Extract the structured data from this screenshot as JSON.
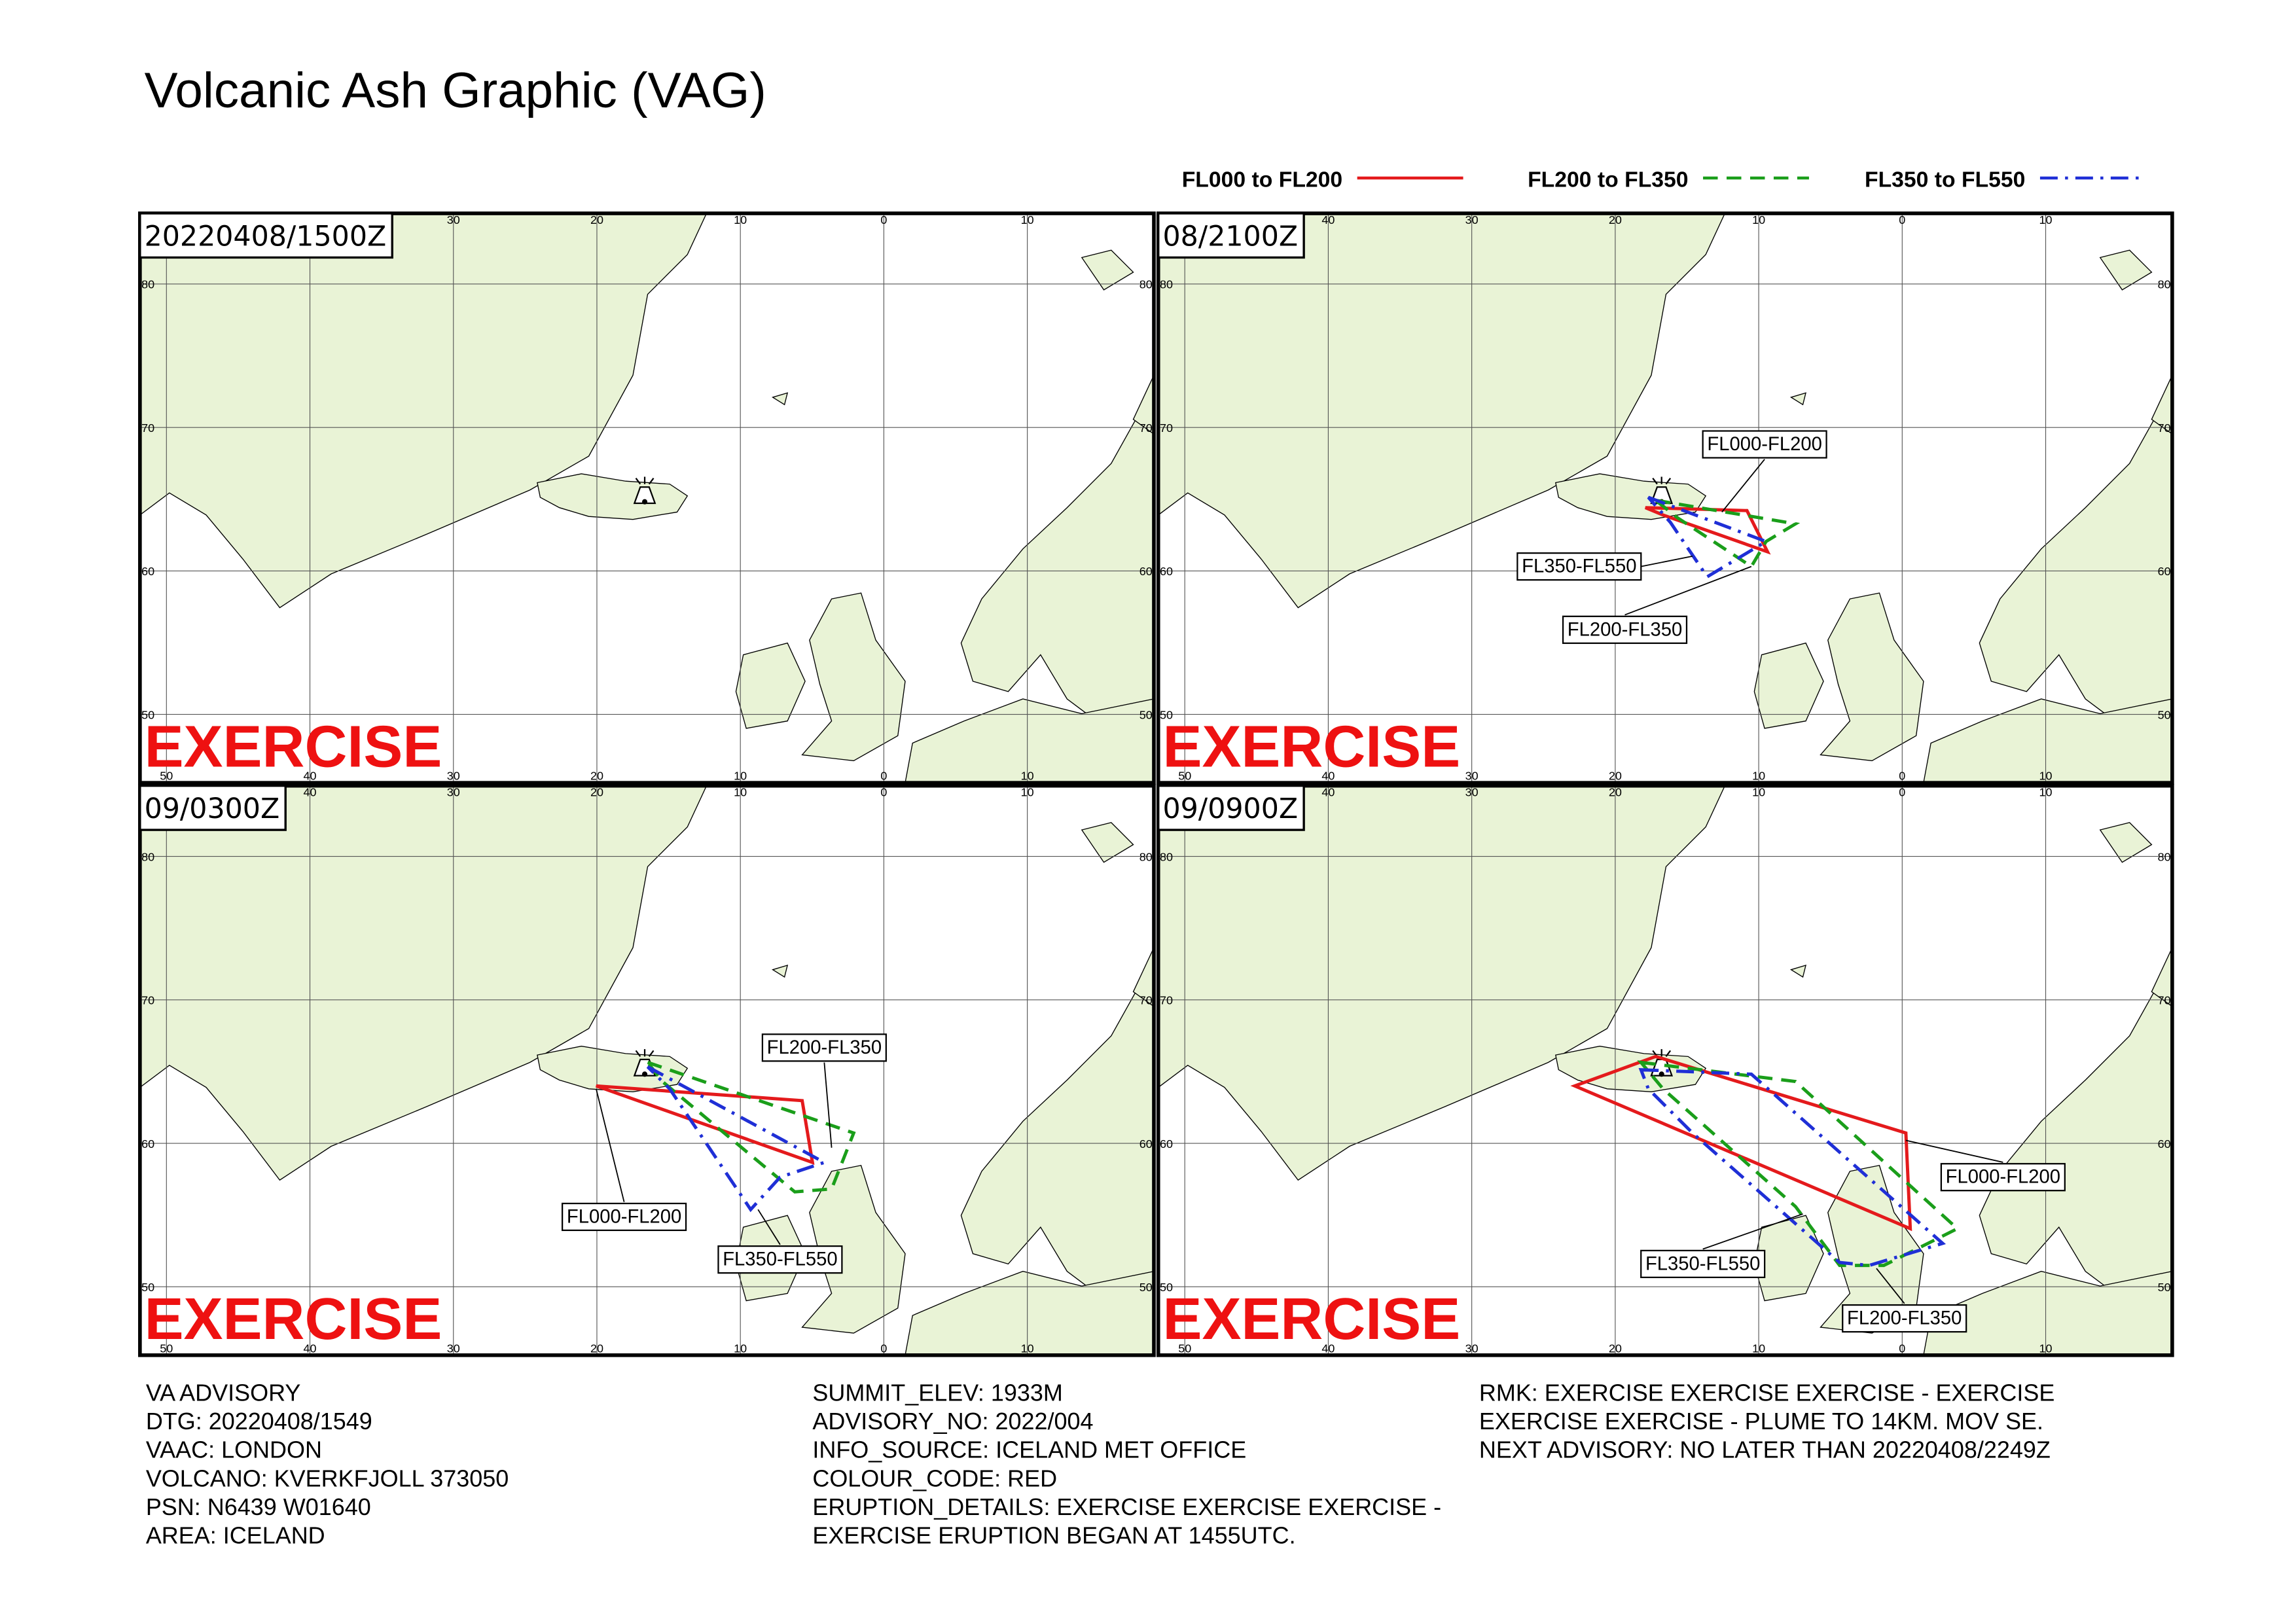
{
  "title": "Volcanic Ash Graphic (VAG)",
  "legend": [
    {
      "label": "FL000 to FL200",
      "color": "#e41a1c",
      "dash": "solid"
    },
    {
      "label": "FL200 to FL350",
      "color": "#1a9e1a",
      "dash": "dashed"
    },
    {
      "label": "FL350 to FL550",
      "color": "#1f2fd6",
      "dash": "dashdot"
    }
  ],
  "graticule": {
    "lon_labels": [
      50,
      40,
      30,
      20,
      10,
      0,
      10
    ],
    "lat_labels": [
      80,
      70,
      60,
      50
    ]
  },
  "watermark": "EXERCISE",
  "panels": [
    {
      "time": "20220408/1500Z",
      "labels": []
    },
    {
      "time": "08/2100Z",
      "labels": [
        "FL000-FL200",
        "FL350-FL550",
        "FL200-FL350"
      ]
    },
    {
      "time": "09/0300Z",
      "labels": [
        "FL200-FL350",
        "FL000-FL200",
        "FL350-FL550"
      ]
    },
    {
      "time": "09/0900Z",
      "labels": [
        "FL000-FL200",
        "FL350-FL550",
        "FL200-FL350"
      ]
    }
  ],
  "footer": [
    [
      "VA ADVISORY",
      "DTG: 20220408/1549",
      "VAAC: LONDON",
      "VOLCANO: KVERKFJOLL 373050",
      "PSN: N6439 W01640",
      "AREA: ICELAND"
    ],
    [
      "SUMMIT_ELEV: 1933M",
      "ADVISORY_NO: 2022/004",
      "INFO_SOURCE: ICELAND MET OFFICE",
      "COLOUR_CODE: RED",
      "ERUPTION_DETAILS: EXERCISE EXERCISE EXERCISE -",
      "EXERCISE ERUPTION BEGAN AT 1455UTC."
    ],
    [
      "RMK: EXERCISE EXERCISE EXERCISE - EXERCISE",
      "EXERCISE EXERCISE - PLUME TO 14KM. MOV SE.",
      "NEXT ADVISORY: NO LATER THAN 20220408/2249Z"
    ]
  ]
}
